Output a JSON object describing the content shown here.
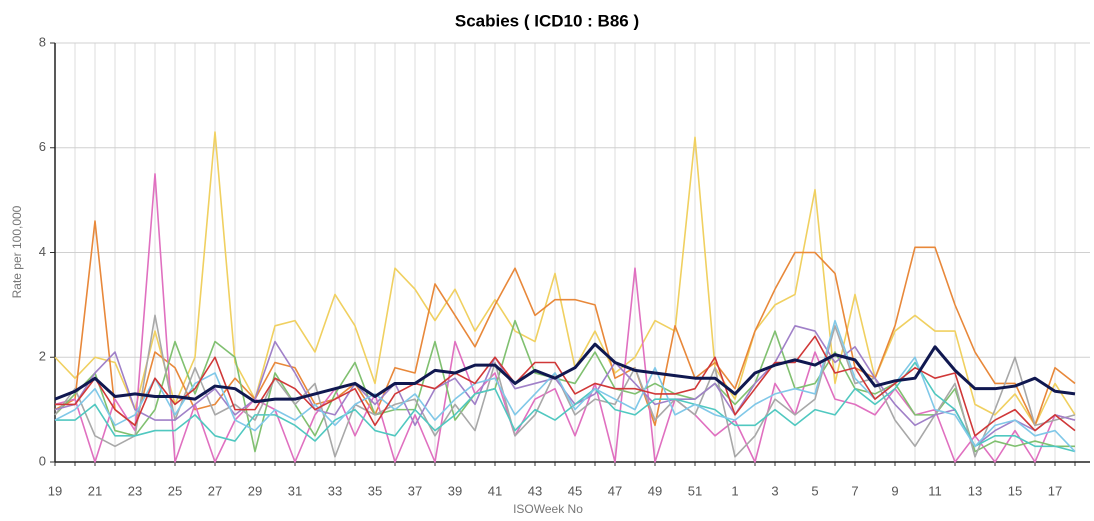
{
  "chart_data": {
    "type": "line",
    "title": "Scabies ( ICD10 : B86 )",
    "x_label": "ISOWeek No",
    "y_label": "Rate per 100,000",
    "categories": [
      19,
      null,
      21,
      null,
      23,
      null,
      25,
      null,
      27,
      null,
      29,
      null,
      31,
      null,
      33,
      null,
      35,
      null,
      37,
      null,
      39,
      null,
      41,
      null,
      43,
      null,
      45,
      null,
      47,
      null,
      49,
      null,
      51,
      null,
      1,
      null,
      3,
      null,
      5,
      null,
      7,
      null,
      9,
      null,
      11,
      null,
      13,
      null,
      15,
      null,
      17,
      null
    ],
    "ylim": [
      0,
      8
    ],
    "yticks": [
      0,
      2,
      4,
      6,
      8
    ],
    "grid": true,
    "series": [
      {
        "color": "#f0d060",
        "values": [
          2.0,
          1.6,
          2.0,
          1.9,
          1.0,
          2.5,
          1.1,
          2.0,
          6.3,
          1.9,
          1.2,
          2.6,
          2.7,
          2.1,
          3.2,
          2.6,
          1.5,
          3.7,
          3.3,
          2.7,
          3.3,
          2.5,
          3.1,
          2.5,
          2.3,
          3.6,
          1.8,
          2.5,
          1.7,
          2.0,
          2.7,
          2.5,
          6.2,
          1.8,
          1.2,
          2.5,
          3.0,
          3.2,
          5.2,
          1.5,
          3.2,
          1.6,
          2.5,
          2.8,
          2.5,
          2.5,
          1.1,
          0.9,
          1.3,
          0.7,
          1.5,
          0.9
        ]
      },
      {
        "color": "#e8883a",
        "values": [
          1.0,
          1.2,
          4.6,
          1.0,
          0.7,
          2.1,
          1.8,
          1.0,
          1.1,
          1.6,
          1.2,
          1.9,
          1.8,
          1.1,
          1.2,
          1.5,
          0.9,
          1.8,
          1.7,
          3.4,
          2.8,
          2.2,
          3.0,
          3.7,
          2.8,
          3.1,
          3.1,
          3.0,
          1.6,
          1.8,
          0.7,
          2.6,
          1.6,
          1.9,
          1.4,
          2.5,
          3.3,
          4.0,
          4.0,
          3.6,
          1.8,
          1.6,
          2.6,
          4.1,
          4.1,
          3.0,
          2.1,
          1.5,
          1.5,
          0.7,
          1.8,
          1.5
        ]
      },
      {
        "color": "#e070c0",
        "values": [
          1.1,
          1.2,
          0,
          1.2,
          0.6,
          5.5,
          0,
          1.1,
          0,
          0.8,
          1.2,
          1.0,
          0,
          0.9,
          1.4,
          0.5,
          1.3,
          0,
          0.9,
          0,
          2.3,
          1.3,
          1.7,
          0.5,
          1.2,
          1.4,
          0.5,
          1.5,
          0,
          3.7,
          0,
          1.2,
          0.9,
          0.5,
          0.8,
          0,
          1.5,
          0.9,
          2.1,
          1.2,
          1.1,
          0.9,
          1.4,
          0.9,
          1.0,
          0,
          0.5,
          0,
          0.6,
          0,
          0.9,
          0.8
        ]
      },
      {
        "color": "#80c070",
        "values": [
          0.9,
          1.3,
          1.7,
          0.6,
          0.5,
          1.0,
          2.3,
          1.3,
          2.3,
          2.0,
          0.2,
          1.7,
          1.1,
          0.5,
          1.3,
          1.9,
          0.9,
          1.0,
          1.0,
          2.3,
          0.8,
          1.3,
          1.4,
          2.7,
          1.7,
          1.6,
          1.5,
          2.1,
          1.4,
          1.3,
          1.5,
          1.3,
          1.2,
          1.5,
          1.1,
          1.5,
          2.5,
          1.4,
          1.5,
          2.1,
          1.4,
          1.3,
          1.5,
          0.9,
          0.9,
          1.4,
          0.2,
          0.4,
          0.3,
          0.4,
          0.3,
          0.3
        ]
      },
      {
        "color": "#a8a8a8",
        "values": [
          0.9,
          1.4,
          0.5,
          0.3,
          0.5,
          2.8,
          0.8,
          1.8,
          0.9,
          1.1,
          0.8,
          1.6,
          1.1,
          1.5,
          0.1,
          1.1,
          0.9,
          1.1,
          1.2,
          0.5,
          1.1,
          0.6,
          1.9,
          0.5,
          0.9,
          1.7,
          0.9,
          1.2,
          1.1,
          1.8,
          0.8,
          1.2,
          0.9,
          1.8,
          0.1,
          0.5,
          1.2,
          0.9,
          1.2,
          2.6,
          1.5,
          1.6,
          0.8,
          0.3,
          0.9,
          1.5,
          0.1,
          1.0,
          2.0,
          0.7,
          0.8,
          0.9
        ]
      },
      {
        "color": "#a080c8",
        "values": [
          1.0,
          1.1,
          1.7,
          2.1,
          1.0,
          0.8,
          0.8,
          1.1,
          1.4,
          0.9,
          1.2,
          2.3,
          1.7,
          1.0,
          0.9,
          1.5,
          1.1,
          1.5,
          0.7,
          1.4,
          1.6,
          1.1,
          2.0,
          1.4,
          1.5,
          1.6,
          1.1,
          1.3,
          1.9,
          1.5,
          1.1,
          1.2,
          1.2,
          1.5,
          0.9,
          1.5,
          1.9,
          2.6,
          2.5,
          1.9,
          2.2,
          1.6,
          1.1,
          0.7,
          0.9,
          1.0,
          0.3,
          0.6,
          0.8,
          0.6,
          0.9,
          0.8
        ]
      },
      {
        "color": "#50c8c0",
        "values": [
          0.8,
          0.8,
          1.1,
          0.5,
          0.5,
          0.6,
          0.6,
          0.9,
          0.5,
          0.4,
          0.9,
          0.9,
          0.7,
          0.4,
          0.8,
          1.0,
          0.6,
          0.5,
          1.0,
          0.6,
          0.9,
          1.3,
          1.4,
          0.6,
          1.0,
          0.8,
          1.1,
          1.4,
          1.0,
          0.9,
          1.2,
          1.2,
          1.1,
          1.0,
          0.7,
          0.7,
          1.0,
          0.7,
          1.0,
          0.9,
          1.4,
          1.1,
          1.4,
          1.9,
          1.3,
          1.0,
          0.3,
          0.5,
          0.5,
          0.3,
          0.3,
          0.2
        ]
      },
      {
        "color": "#80c8e8",
        "values": [
          0.8,
          1.0,
          1.4,
          0.7,
          0.9,
          1.6,
          0.9,
          1.5,
          1.7,
          0.8,
          0.6,
          1.0,
          0.8,
          1.1,
          0.7,
          1.1,
          1.3,
          1.0,
          1.3,
          0.8,
          1.2,
          1.5,
          1.6,
          0.9,
          1.3,
          1.7,
          1.0,
          1.4,
          1.2,
          1.0,
          1.8,
          0.9,
          1.1,
          0.9,
          0.8,
          1.1,
          1.3,
          1.4,
          1.3,
          2.7,
          1.6,
          1.2,
          1.5,
          2.0,
          1.0,
          0.9,
          0.3,
          0.7,
          0.8,
          0.5,
          0.6,
          0.2
        ]
      },
      {
        "color": "#d03838",
        "values": [
          1.1,
          1.1,
          1.6,
          1.0,
          0.7,
          1.6,
          1.1,
          1.4,
          2.0,
          1.0,
          1.0,
          1.6,
          1.4,
          1.0,
          1.2,
          1.4,
          0.7,
          1.3,
          1.5,
          1.4,
          1.7,
          1.5,
          2.0,
          1.5,
          1.9,
          1.9,
          1.3,
          1.5,
          1.4,
          1.4,
          1.3,
          1.3,
          1.4,
          2.0,
          0.9,
          1.4,
          1.9,
          1.9,
          2.4,
          1.7,
          1.8,
          1.2,
          1.5,
          1.8,
          1.6,
          1.7,
          0.5,
          0.8,
          1.0,
          0.6,
          0.9,
          0.6
        ]
      },
      {
        "color": "#101850",
        "width": 3,
        "values": [
          1.2,
          1.35,
          1.6,
          1.25,
          1.3,
          1.25,
          1.25,
          1.2,
          1.45,
          1.4,
          1.15,
          1.2,
          1.2,
          1.3,
          1.4,
          1.5,
          1.25,
          1.5,
          1.5,
          1.75,
          1.7,
          1.85,
          1.85,
          1.5,
          1.75,
          1.6,
          1.8,
          2.25,
          1.9,
          1.75,
          1.7,
          1.65,
          1.6,
          1.6,
          1.3,
          1.7,
          1.85,
          1.95,
          1.85,
          2.05,
          1.95,
          1.45,
          1.55,
          1.6,
          2.2,
          1.75,
          1.4,
          1.4,
          1.45,
          1.6,
          1.35,
          1.3
        ]
      }
    ]
  }
}
